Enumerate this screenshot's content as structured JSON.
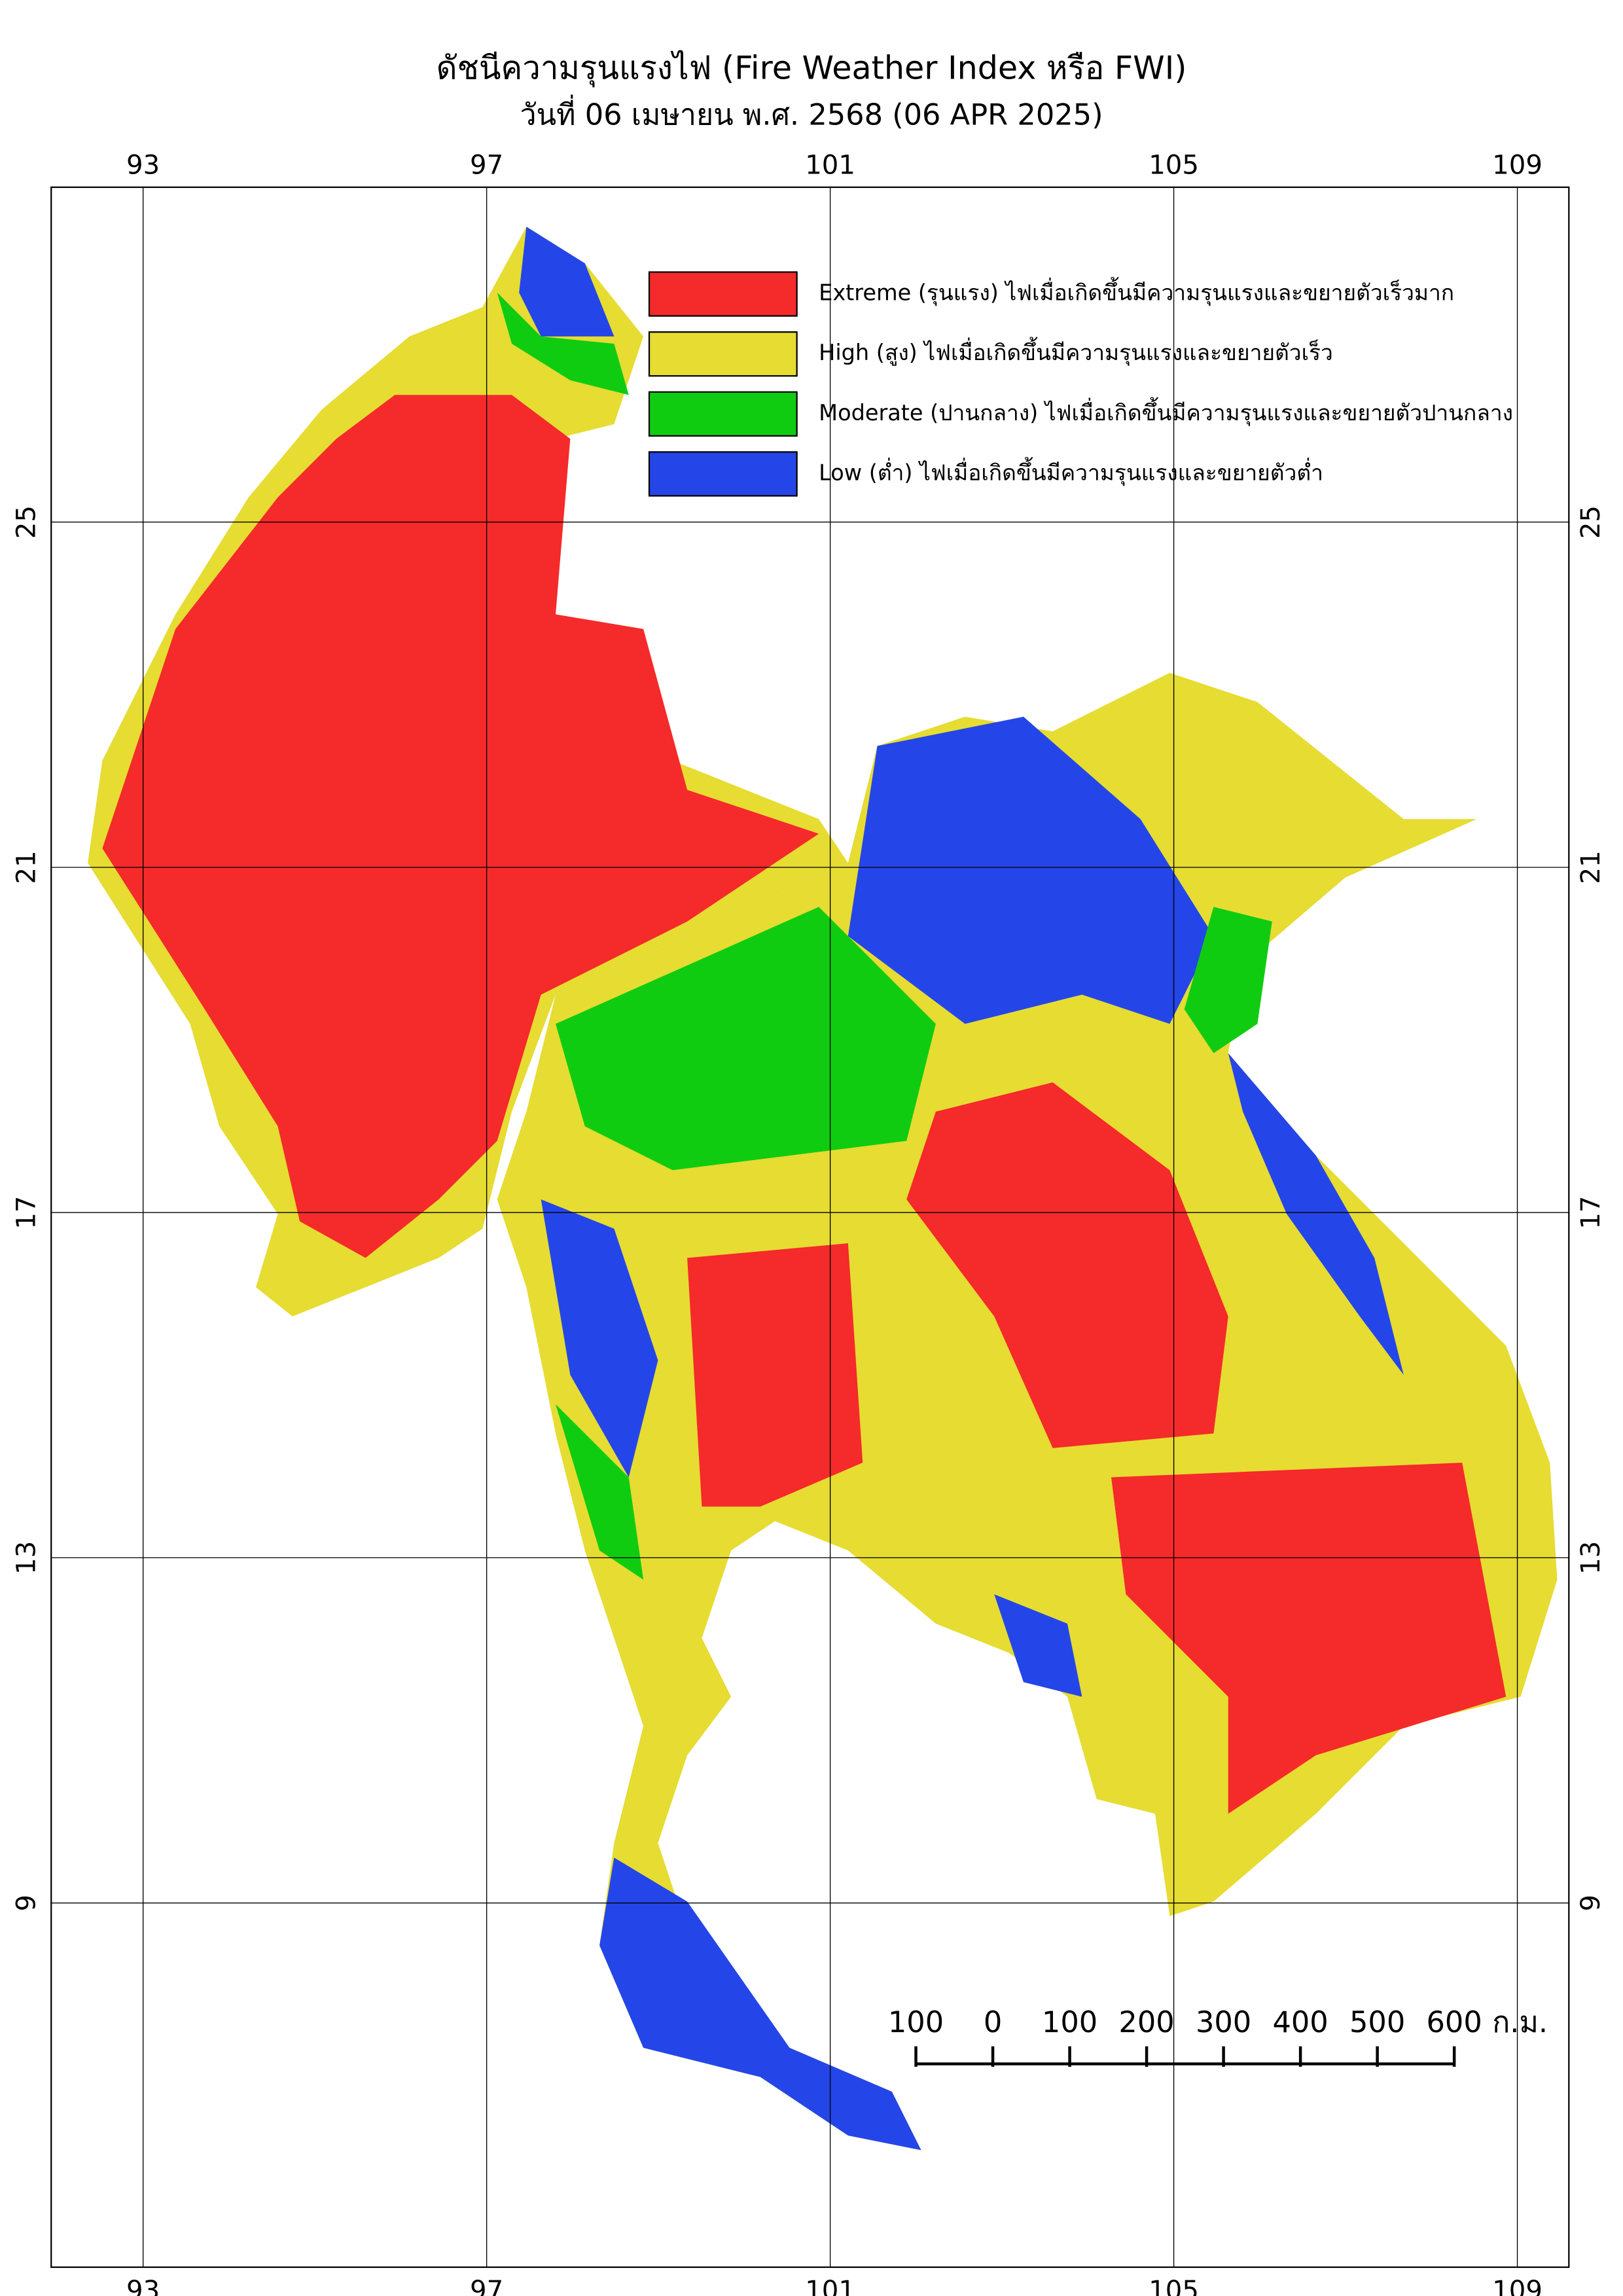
{
  "title": "ดัชนีความรุนแรงไฟ (Fire Weather Index หรือ FWI)",
  "subtitle": "วันที่ 06 เมษายน พ.ศ. 2568 (06 APR 2025)",
  "map": {
    "xlim": [
      91.93,
      109.6
    ],
    "ylim": [
      4.78,
      28.88
    ],
    "xticks": [
      93,
      97,
      101,
      105,
      109
    ],
    "yticks": [
      25,
      21,
      17,
      13,
      9
    ],
    "grid": true,
    "legend": [
      {
        "label": "Extreme (รุนแรง) ไฟเมื่อเกิดขึ้นมีความรุนแรงและขยายตัวเร็วมาก",
        "color": "#f52a2a"
      },
      {
        "label": "High (สูง) ไฟเมื่อเกิดขึ้นมีความรุนแรงและขยายตัวเร็ว",
        "color": "#e6dc32"
      },
      {
        "label": "Moderate (ปานกลาง) ไฟเมื่อเกิดขึ้นมีความรุนแรงและขยายตัวปานกลาง",
        "color": "#10cc10"
      },
      {
        "label": "Low (ต่ำ) ไฟเมื่อเกิดขึ้นมีความรุนแรงและขยายตัวต่ำ",
        "color": "#2446e8"
      }
    ],
    "scale_bar": {
      "ticks": [
        {
          "value": -100,
          "label": "100"
        },
        0,
        100,
        200,
        300,
        400,
        500,
        600
      ],
      "unit": "ก.ม."
    }
  }
}
